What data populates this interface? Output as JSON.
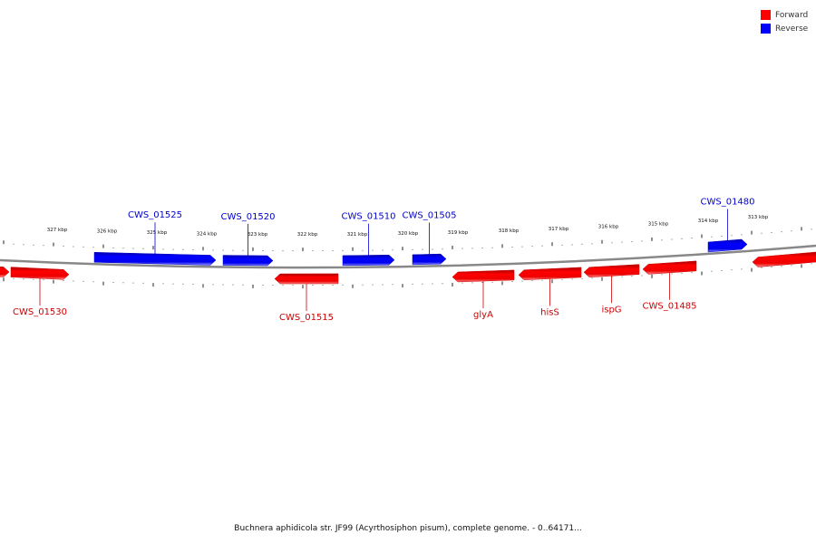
{
  "colors": {
    "forward": "#ff0000",
    "reverse": "#0000ff",
    "forward_label": "#cc0000",
    "reverse_label": "#0000cc",
    "backbone": "#888888"
  },
  "legend": [
    {
      "name": "Forward",
      "color": "#ff0000"
    },
    {
      "name": "Reverse",
      "color": "#0000ff"
    }
  ],
  "caption": "Buchnera aphidicola str. JF99 (Acyrthosiphon pisum), complete genome. - 0..64171...",
  "kbp_ticks": [
    "327 kbp",
    "326 kbp",
    "325 kbp",
    "324 kbp",
    "323 kbp",
    "322 kbp",
    "321 kbp",
    "320 kbp",
    "319 kbp",
    "318 kbp",
    "317 kbp",
    "316 kbp",
    "315 kbp",
    "314 kbp",
    "313 kbp"
  ],
  "genes": [
    {
      "name": "",
      "strand": "forward"
    },
    {
      "name": "CWS_01530",
      "strand": "forward"
    },
    {
      "name": "CWS_01525",
      "strand": "reverse"
    },
    {
      "name": "CWS_01520",
      "strand": "reverse"
    },
    {
      "name": "CWS_01515",
      "strand": "forward"
    },
    {
      "name": "CWS_01510",
      "strand": "reverse"
    },
    {
      "name": "CWS_01505",
      "strand": "reverse"
    },
    {
      "name": "glyA",
      "strand": "forward"
    },
    {
      "name": "hisS",
      "strand": "forward"
    },
    {
      "name": "ispG",
      "strand": "forward"
    },
    {
      "name": "CWS_01485",
      "strand": "forward"
    },
    {
      "name": "CWS_01480",
      "strand": "reverse"
    },
    {
      "name": "",
      "strand": "forward"
    }
  ]
}
